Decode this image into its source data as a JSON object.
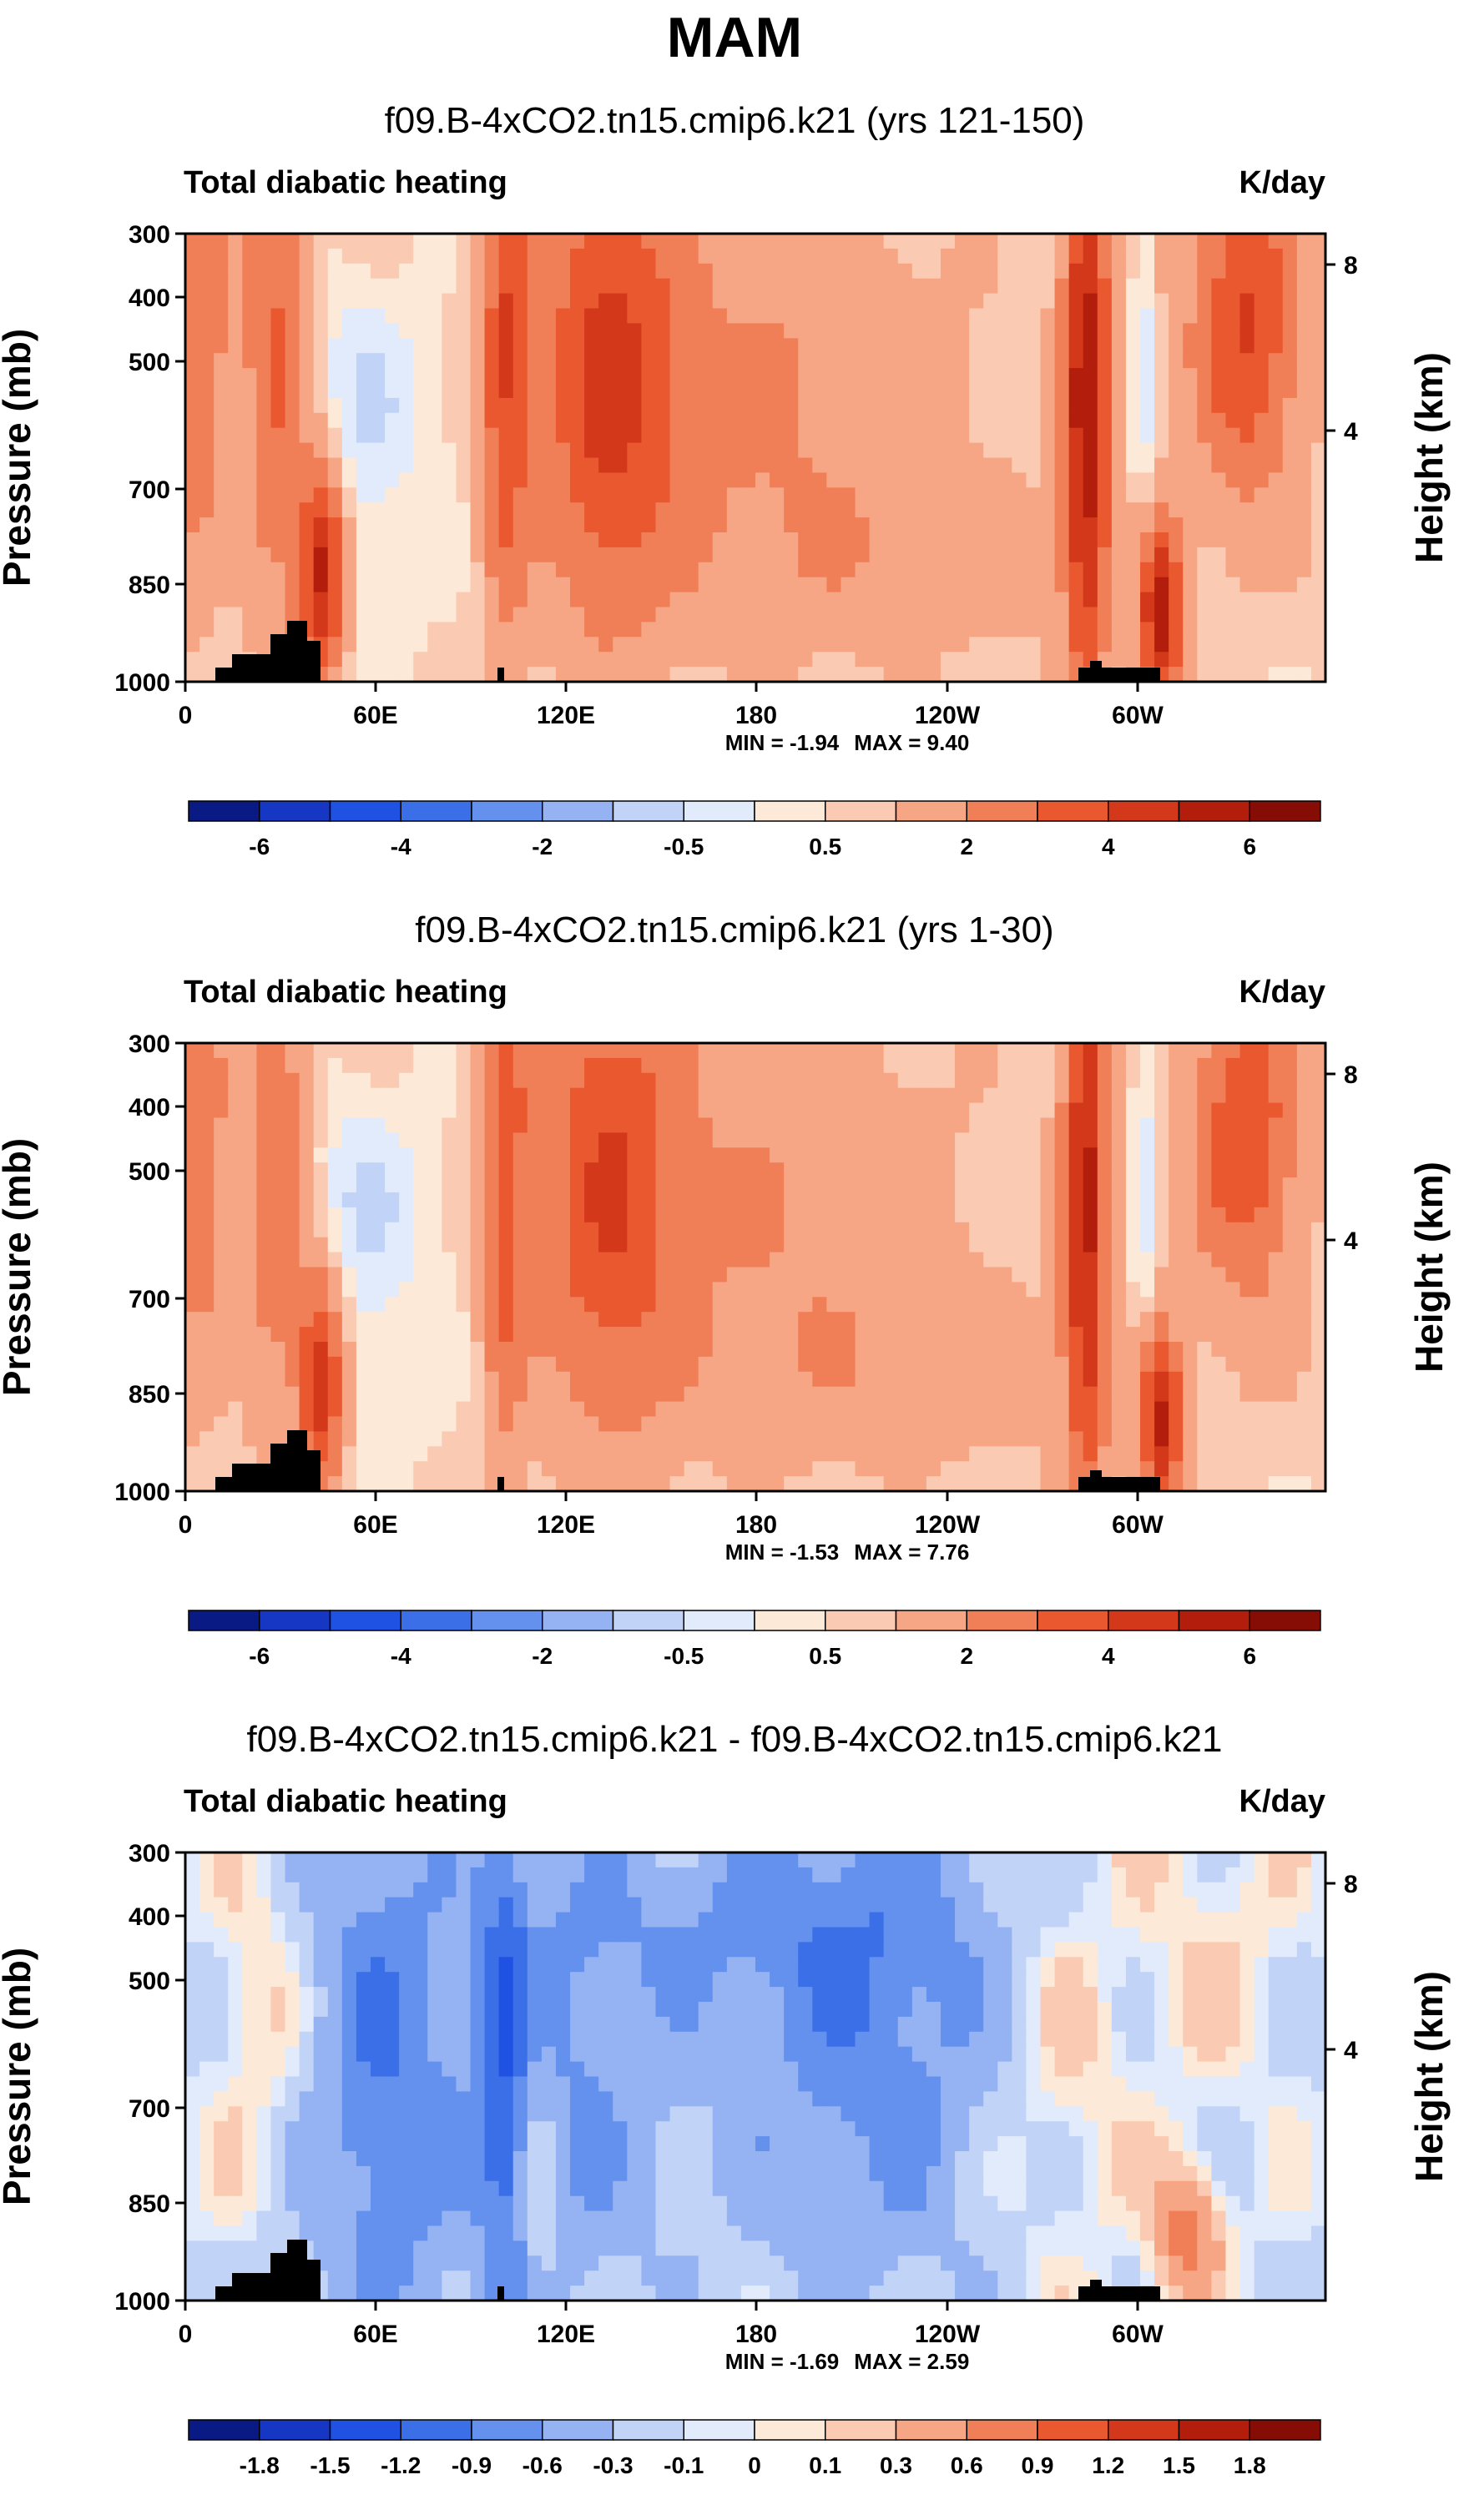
{
  "page_title": "MAM",
  "chart_data": [
    {
      "type": "heatmap",
      "title": "f09.B-4xCO2.tn15.cmip6.k21 (yrs 121-150)",
      "left_label": "Total diabatic heating",
      "units": "K/day",
      "ylabel": "Pressure (mb)",
      "y2label": "Height (km)",
      "x_ticks": [
        "0",
        "60E",
        "120E",
        "180",
        "120W",
        "60W"
      ],
      "y_ticks": [
        "300",
        "400",
        "500",
        "700",
        "850",
        "1000"
      ],
      "y2_ticks": [
        "8",
        "4"
      ],
      "min_label": "MIN =  -1.94",
      "max_label": "MAX =   9.40",
      "min": -1.94,
      "max": 9.4,
      "colorbar_labels": [
        "-6",
        "-4",
        "-2",
        "-0.5",
        "0.5",
        "2",
        "4",
        "6"
      ],
      "colorbar_colors": [
        "#0a1a85",
        "#1537c4",
        "#1f52e3",
        "#3a6fe8",
        "#6491ee",
        "#95b3f2",
        "#c1d3f6",
        "#e1ebfb",
        "#fde9d7",
        "#fbcab2",
        "#f6a684",
        "#f07f58",
        "#e9582f",
        "#d3381a",
        "#b31e0c",
        "#850d05"
      ]
    },
    {
      "type": "heatmap",
      "title": "f09.B-4xCO2.tn15.cmip6.k21 (yrs 1-30)",
      "left_label": "Total diabatic heating",
      "units": "K/day",
      "ylabel": "Pressure (mb)",
      "y2label": "Height (km)",
      "x_ticks": [
        "0",
        "60E",
        "120E",
        "180",
        "120W",
        "60W"
      ],
      "y_ticks": [
        "300",
        "400",
        "500",
        "700",
        "850",
        "1000"
      ],
      "y2_ticks": [
        "8",
        "4"
      ],
      "min_label": "MIN =  -1.53",
      "max_label": "MAX =   7.76",
      "min": -1.53,
      "max": 7.76,
      "colorbar_labels": [
        "-6",
        "-4",
        "-2",
        "-0.5",
        "0.5",
        "2",
        "4",
        "6"
      ],
      "colorbar_colors": [
        "#0a1a85",
        "#1537c4",
        "#1f52e3",
        "#3a6fe8",
        "#6491ee",
        "#95b3f2",
        "#c1d3f6",
        "#e1ebfb",
        "#fde9d7",
        "#fbcab2",
        "#f6a684",
        "#f07f58",
        "#e9582f",
        "#d3381a",
        "#b31e0c",
        "#850d05"
      ]
    },
    {
      "type": "heatmap",
      "title": "f09.B-4xCO2.tn15.cmip6.k21 - f09.B-4xCO2.tn15.cmip6.k21",
      "left_label": "Total diabatic heating",
      "units": "K/day",
      "ylabel": "Pressure (mb)",
      "y2label": "Height (km)",
      "x_ticks": [
        "0",
        "60E",
        "120E",
        "180",
        "120W",
        "60W"
      ],
      "y_ticks": [
        "300",
        "400",
        "500",
        "700",
        "850",
        "1000"
      ],
      "y2_ticks": [
        "8",
        "4"
      ],
      "min_label": "MIN =  -1.69",
      "max_label": "MAX =   2.59",
      "min": -1.69,
      "max": 2.59,
      "colorbar_labels": [
        "-1.8",
        "-1.5",
        "-1.2",
        "-0.9",
        "-0.6",
        "-0.3",
        "-0.1",
        "0",
        "0.1",
        "0.3",
        "0.6",
        "0.9",
        "1.2",
        "1.5",
        "1.8"
      ],
      "colorbar_colors": [
        "#0a1a85",
        "#1537c4",
        "#1f52e3",
        "#3a6fe8",
        "#6491ee",
        "#95b3f2",
        "#c1d3f6",
        "#e1ebfb",
        "#fde9d7",
        "#fbcab2",
        "#f6a684",
        "#f07f58",
        "#e9582f",
        "#d3381a",
        "#b31e0c",
        "#850d05"
      ]
    }
  ]
}
